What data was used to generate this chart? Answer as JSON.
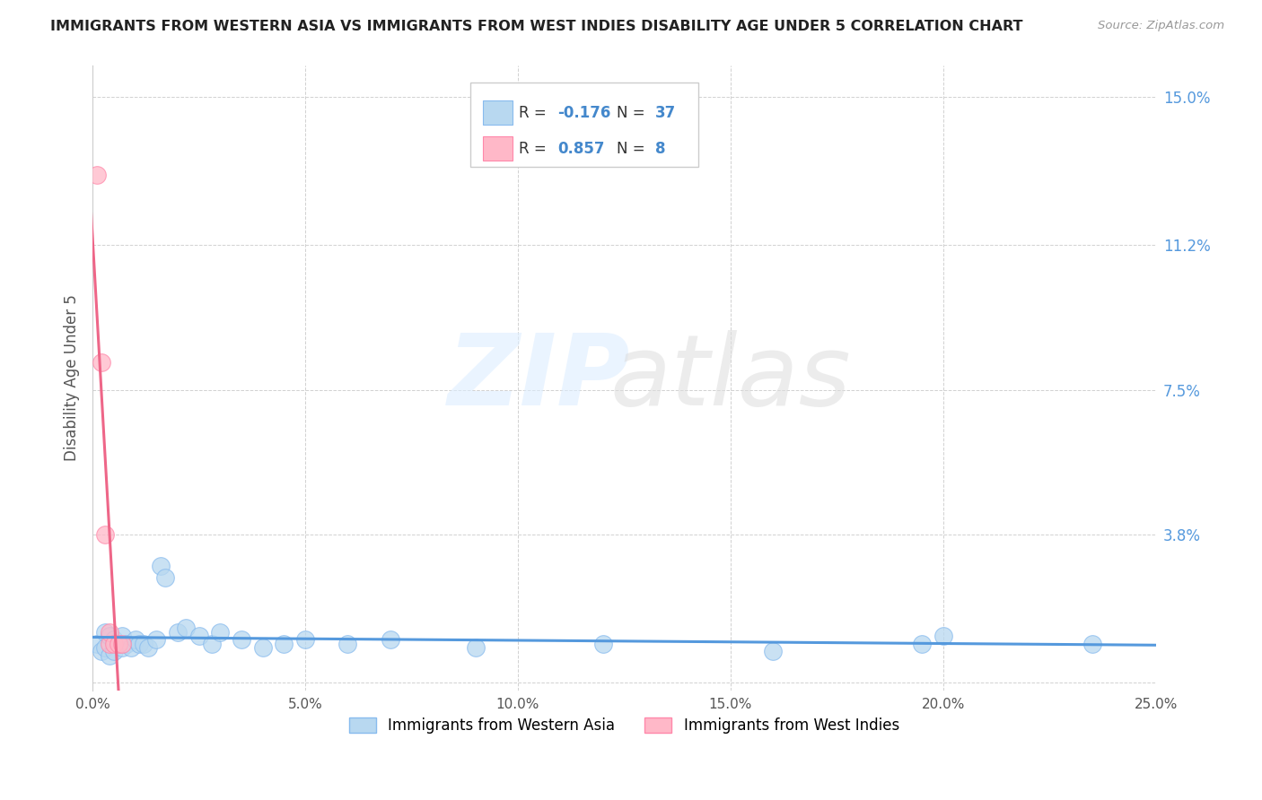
{
  "title": "IMMIGRANTS FROM WESTERN ASIA VS IMMIGRANTS FROM WEST INDIES DISABILITY AGE UNDER 5 CORRELATION CHART",
  "source": "Source: ZipAtlas.com",
  "ylabel": "Disability Age Under 5",
  "xlim": [
    0.0,
    0.25
  ],
  "ylim": [
    -0.002,
    0.158
  ],
  "xticks": [
    0.0,
    0.05,
    0.1,
    0.15,
    0.2,
    0.25
  ],
  "xtick_labels": [
    "0.0%",
    "5.0%",
    "10.0%",
    "15.0%",
    "20.0%",
    "25.0%"
  ],
  "ytick_vals": [
    0.0,
    0.038,
    0.075,
    0.112,
    0.15
  ],
  "ytick_labels": [
    "",
    "3.8%",
    "7.5%",
    "11.2%",
    "15.0%"
  ],
  "blue_scatter_x": [
    0.001,
    0.002,
    0.003,
    0.003,
    0.004,
    0.004,
    0.005,
    0.005,
    0.006,
    0.007,
    0.007,
    0.008,
    0.009,
    0.01,
    0.011,
    0.012,
    0.013,
    0.015,
    0.016,
    0.017,
    0.02,
    0.022,
    0.025,
    0.028,
    0.03,
    0.035,
    0.04,
    0.045,
    0.05,
    0.06,
    0.07,
    0.09,
    0.12,
    0.16,
    0.195,
    0.2,
    0.235
  ],
  "blue_scatter_y": [
    0.01,
    0.008,
    0.009,
    0.013,
    0.007,
    0.012,
    0.008,
    0.011,
    0.01,
    0.009,
    0.012,
    0.01,
    0.009,
    0.011,
    0.01,
    0.01,
    0.009,
    0.011,
    0.03,
    0.027,
    0.013,
    0.014,
    0.012,
    0.01,
    0.013,
    0.011,
    0.009,
    0.01,
    0.011,
    0.01,
    0.011,
    0.009,
    0.01,
    0.008,
    0.01,
    0.012,
    0.01
  ],
  "pink_scatter_x": [
    0.001,
    0.002,
    0.003,
    0.004,
    0.004,
    0.005,
    0.006,
    0.007
  ],
  "pink_scatter_y": [
    0.13,
    0.082,
    0.038,
    0.01,
    0.013,
    0.01,
    0.01,
    0.01
  ],
  "blue_line_color": "#5599DD",
  "pink_line_color": "#EE6688",
  "blue_dot_face": "#B8D8F0",
  "blue_dot_edge": "#88BBEE",
  "pink_dot_face": "#FFB8C8",
  "pink_dot_edge": "#FF88AA",
  "legend_label_blue": "Immigrants from Western Asia",
  "legend_label_pink": "Immigrants from West Indies",
  "background_color": "#ffffff",
  "grid_color": "#cccccc",
  "title_color": "#222222",
  "source_color": "#999999",
  "ytick_color": "#5599DD",
  "xtick_color": "#555555",
  "ylabel_color": "#555555"
}
